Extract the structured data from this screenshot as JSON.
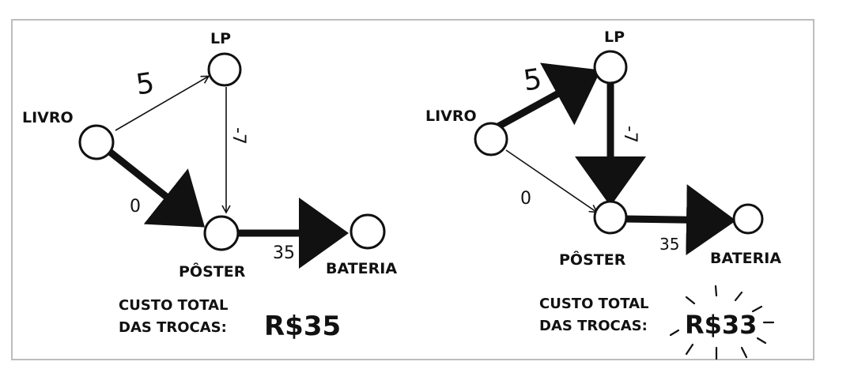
{
  "left_diagram": {
    "nodes": {
      "livro": "LIVRO",
      "lp": "LP",
      "poster": "PÔSTER",
      "bateria": "BATERIA"
    },
    "edges": {
      "livro_lp": "5",
      "livro_poster": "0",
      "lp_poster": "-7",
      "poster_bateria": "35"
    },
    "summary": {
      "line1": "CUSTO TOTAL",
      "line2": "DAS TROCAS:",
      "value": "R$35"
    }
  },
  "right_diagram": {
    "nodes": {
      "livro": "LIVRO",
      "lp": "LP",
      "poster": "PÔSTER",
      "bateria": "BATERIA"
    },
    "edges": {
      "livro_lp": "5",
      "livro_poster": "0",
      "lp_poster": "-7",
      "poster_bateria": "35"
    },
    "summary": {
      "line1": "CUSTO TOTAL",
      "line2": "DAS TROCAS:",
      "value": "R$33"
    }
  },
  "colors": {
    "ink": "#111111",
    "frame": "#bdbdbd",
    "background": "#ffffff"
  }
}
